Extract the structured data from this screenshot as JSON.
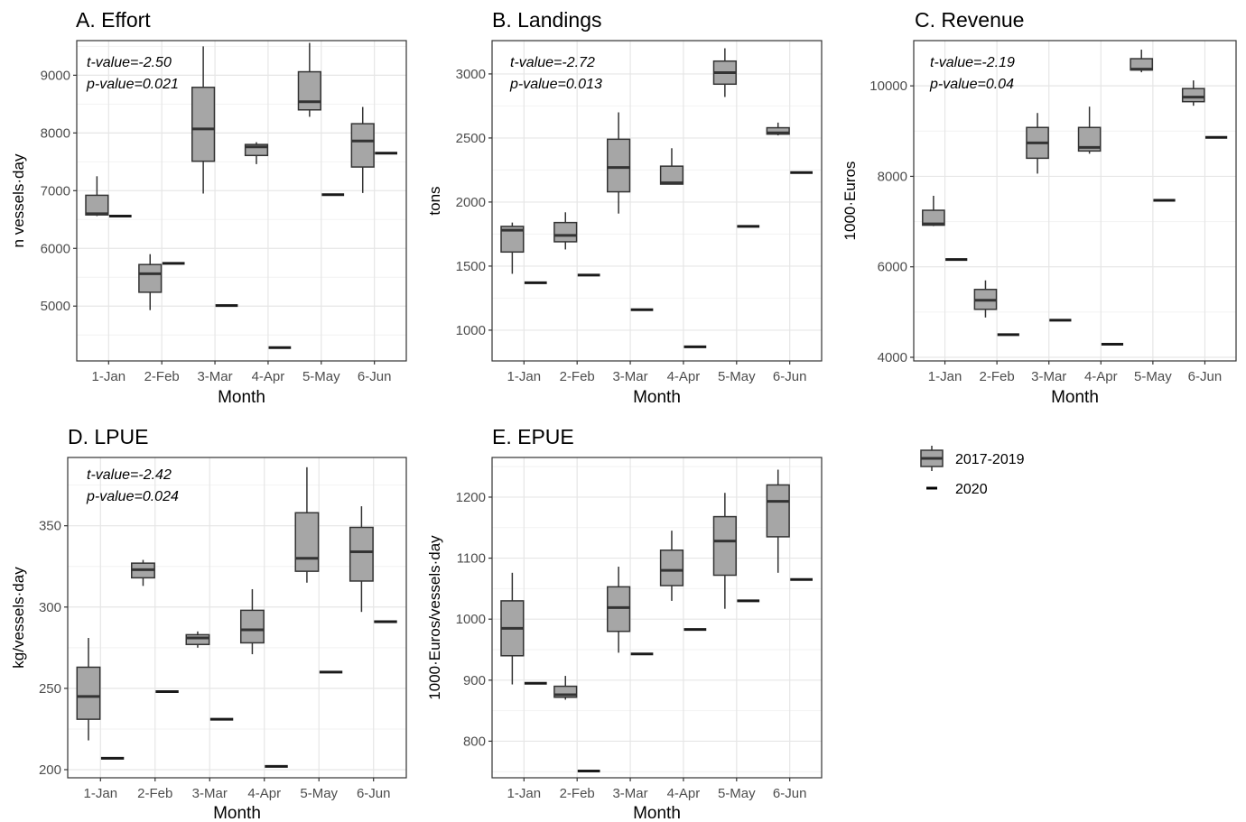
{
  "legend": [
    {
      "label": "2017-2019",
      "kind": "box",
      "fill": "#a6a6a6"
    },
    {
      "label": "2020",
      "kind": "dash",
      "color": "#000000"
    }
  ],
  "colors": {
    "box_fill": "#a6a6a6",
    "outline": "#333333",
    "grid_major": "#e6e6e6",
    "grid_minor": "#f2f2f2",
    "panel_border": "#333333"
  },
  "chart_data": [
    {
      "type": "boxplot",
      "title": "A. Effort",
      "ylabel": "n vessels·day",
      "xlabel": "Month",
      "annotation": [
        "t-value=-2.50",
        "p-value=0.021"
      ],
      "categories": [
        "1-Jan",
        "2-Feb",
        "3-Mar",
        "4-Apr",
        "5-May",
        "6-Jun"
      ],
      "ylim": [
        4050,
        9600
      ],
      "yticks": [
        5000,
        6000,
        7000,
        8000,
        9000
      ],
      "series": [
        {
          "name": "2017-2019",
          "boxes": [
            {
              "min": 6560,
              "q1": 6580,
              "median": 6600,
              "q3": 6920,
              "max": 7250
            },
            {
              "min": 4930,
              "q1": 5240,
              "median": 5560,
              "q3": 5720,
              "max": 5900
            },
            {
              "min": 6950,
              "q1": 7510,
              "median": 8070,
              "q3": 8790,
              "max": 9500
            },
            {
              "min": 7460,
              "q1": 7610,
              "median": 7760,
              "q3": 7800,
              "max": 7840
            },
            {
              "min": 8280,
              "q1": 8400,
              "median": 8540,
              "q3": 9060,
              "max": 9560
            },
            {
              "min": 6960,
              "q1": 7410,
              "median": 7860,
              "q3": 8160,
              "max": 8450
            }
          ]
        },
        {
          "name": "2020",
          "values": [
            6560,
            5740,
            5010,
            4280,
            6930,
            7650
          ]
        }
      ]
    },
    {
      "type": "boxplot",
      "title": "B. Landings",
      "ylabel": "tons",
      "xlabel": "Month",
      "annotation": [
        "t-value=-2.72",
        "p-value=0.013"
      ],
      "categories": [
        "1-Jan",
        "2-Feb",
        "3-Mar",
        "4-Apr",
        "5-May",
        "6-Jun"
      ],
      "ylim": [
        760,
        3260
      ],
      "yticks": [
        1000,
        1500,
        2000,
        2500,
        3000
      ],
      "series": [
        {
          "name": "2017-2019",
          "boxes": [
            {
              "min": 1440,
              "q1": 1610,
              "median": 1780,
              "q3": 1810,
              "max": 1840
            },
            {
              "min": 1630,
              "q1": 1690,
              "median": 1740,
              "q3": 1840,
              "max": 1920
            },
            {
              "min": 1910,
              "q1": 2080,
              "median": 2270,
              "q3": 2490,
              "max": 2700
            },
            {
              "min": 2140,
              "q1": 2140,
              "median": 2150,
              "q3": 2280,
              "max": 2420
            },
            {
              "min": 2820,
              "q1": 2920,
              "median": 3010,
              "q3": 3100,
              "max": 3200
            },
            {
              "min": 2520,
              "q1": 2530,
              "median": 2540,
              "q3": 2580,
              "max": 2620
            }
          ]
        },
        {
          "name": "2020",
          "values": [
            1370,
            1430,
            1160,
            870,
            1810,
            2230
          ]
        }
      ]
    },
    {
      "type": "boxplot",
      "title": "C. Revenue",
      "ylabel": "1000·Euros",
      "xlabel": "Month",
      "annotation": [
        "t-value=-2.19",
        "p-value=0.04"
      ],
      "categories": [
        "1-Jan",
        "2-Feb",
        "3-Mar",
        "4-Apr",
        "5-May",
        "6-Jun"
      ],
      "ylim": [
        3920,
        11000
      ],
      "yticks": [
        4000,
        6000,
        8000,
        10000
      ],
      "series": [
        {
          "name": "2017-2019",
          "boxes": [
            {
              "min": 6900,
              "q1": 6920,
              "median": 6950,
              "q3": 7250,
              "max": 7570
            },
            {
              "min": 4880,
              "q1": 5060,
              "median": 5260,
              "q3": 5500,
              "max": 5700
            },
            {
              "min": 8060,
              "q1": 8400,
              "median": 8740,
              "q3": 9080,
              "max": 9400
            },
            {
              "min": 8500,
              "q1": 8560,
              "median": 8640,
              "q3": 9080,
              "max": 9540
            },
            {
              "min": 10300,
              "q1": 10350,
              "median": 10370,
              "q3": 10600,
              "max": 10800
            },
            {
              "min": 9560,
              "q1": 9650,
              "median": 9750,
              "q3": 9940,
              "max": 10120
            }
          ]
        },
        {
          "name": "2020",
          "values": [
            6160,
            4500,
            4820,
            4290,
            7470,
            8860
          ]
        }
      ]
    },
    {
      "type": "boxplot",
      "title": "D. LPUE",
      "ylabel": "kg/vessels·day",
      "xlabel": "Month",
      "annotation": [
        "t-value=-2.42",
        "p-value=0.024"
      ],
      "categories": [
        "1-Jan",
        "2-Feb",
        "3-Mar",
        "4-Apr",
        "5-May",
        "6-Jun"
      ],
      "ylim": [
        195,
        392
      ],
      "yticks": [
        200,
        250,
        300,
        350
      ],
      "series": [
        {
          "name": "2017-2019",
          "boxes": [
            {
              "min": 218,
              "q1": 231,
              "median": 245,
              "q3": 263,
              "max": 281
            },
            {
              "min": 313,
              "q1": 318,
              "median": 323,
              "q3": 327,
              "max": 329
            },
            {
              "min": 275,
              "q1": 277,
              "median": 281,
              "q3": 283,
              "max": 285
            },
            {
              "min": 271,
              "q1": 278,
              "median": 286,
              "q3": 298,
              "max": 311
            },
            {
              "min": 315,
              "q1": 322,
              "median": 330,
              "q3": 358,
              "max": 386
            },
            {
              "min": 297,
              "q1": 316,
              "median": 334,
              "q3": 349,
              "max": 362
            }
          ]
        },
        {
          "name": "2020",
          "values": [
            207,
            248,
            231,
            202,
            260,
            291
          ]
        }
      ]
    },
    {
      "type": "boxplot",
      "title": "E. EPUE",
      "ylabel": "1000·Euros/vessels·day",
      "xlabel": "Month",
      "annotation": [],
      "categories": [
        "1-Jan",
        "2-Feb",
        "3-Mar",
        "4-Apr",
        "5-May",
        "6-Jun"
      ],
      "ylim": [
        740,
        1265
      ],
      "yticks": [
        800,
        900,
        1000,
        1100,
        1200
      ],
      "series": [
        {
          "name": "2017-2019",
          "boxes": [
            {
              "min": 893,
              "q1": 940,
              "median": 985,
              "q3": 1030,
              "max": 1076
            },
            {
              "min": 868,
              "q1": 872,
              "median": 876,
              "q3": 890,
              "max": 907
            },
            {
              "min": 945,
              "q1": 980,
              "median": 1019,
              "q3": 1053,
              "max": 1086
            },
            {
              "min": 1030,
              "q1": 1055,
              "median": 1080,
              "q3": 1113,
              "max": 1145
            },
            {
              "min": 1017,
              "q1": 1072,
              "median": 1128,
              "q3": 1168,
              "max": 1207
            },
            {
              "min": 1076,
              "q1": 1135,
              "median": 1193,
              "q3": 1220,
              "max": 1245
            }
          ]
        },
        {
          "name": "2020",
          "values": [
            895,
            751,
            943,
            983,
            1030,
            1065
          ]
        }
      ]
    }
  ]
}
